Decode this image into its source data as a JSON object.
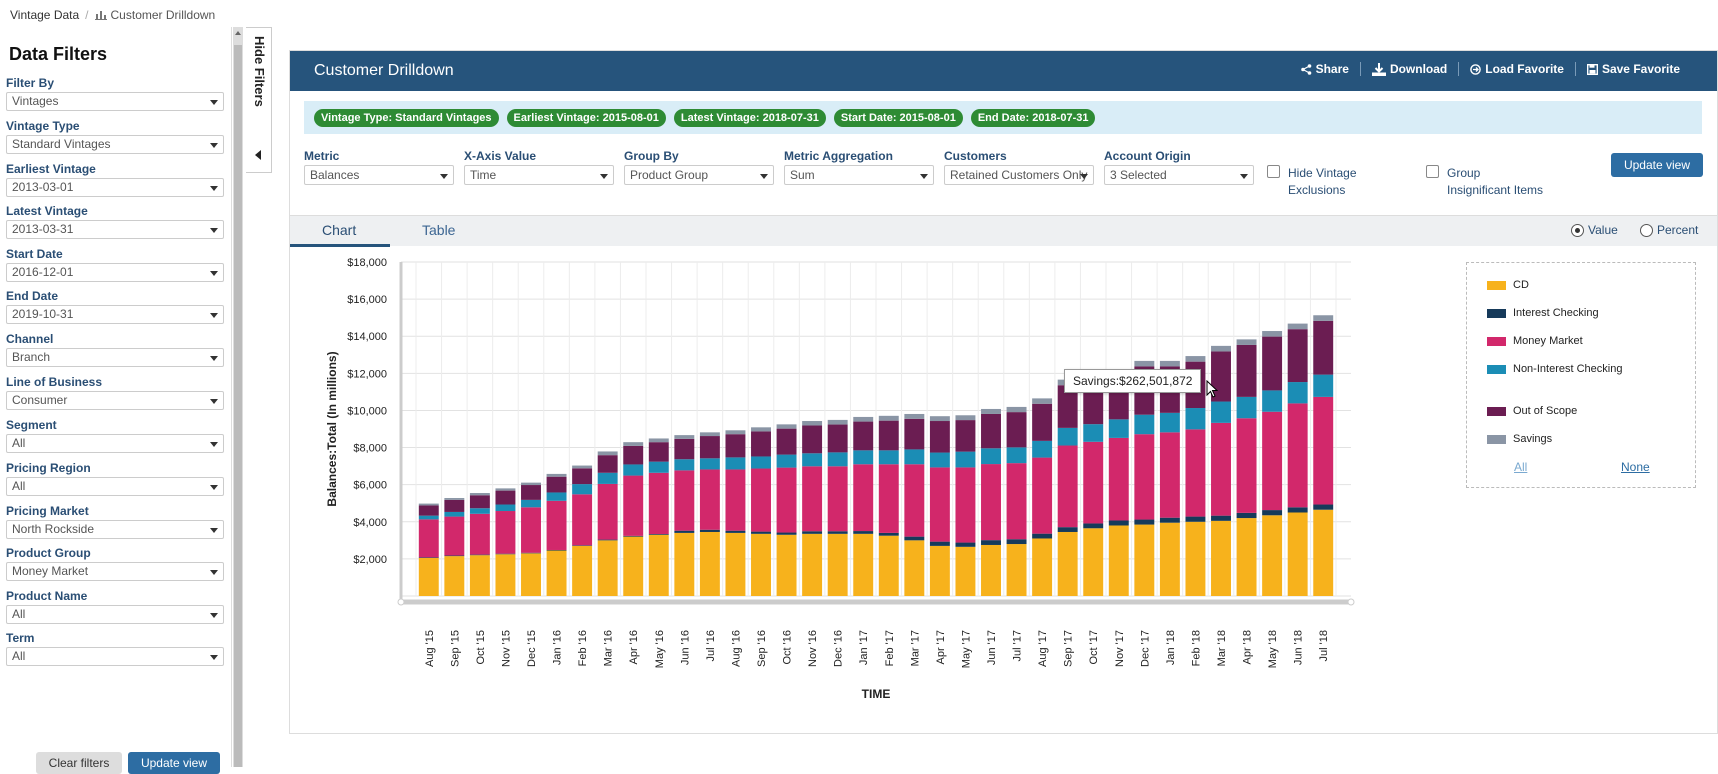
{
  "breadcrumb": {
    "root": "Vintage Data",
    "current": "Customer Drilldown"
  },
  "sidebar": {
    "title": "Data Filters",
    "filters": [
      {
        "label": "Filter By",
        "value": "Vintages"
      },
      {
        "label": "Vintage Type",
        "value": "Standard Vintages"
      },
      {
        "label": "Earliest Vintage",
        "value": "2013-03-01"
      },
      {
        "label": "Latest Vintage",
        "value": "2013-03-31"
      },
      {
        "label": "Start Date",
        "value": "2016-12-01"
      },
      {
        "label": "End Date",
        "value": "2019-10-31"
      },
      {
        "label": "Channel",
        "value": "Branch"
      },
      {
        "label": "Line of Business",
        "value": "Consumer"
      },
      {
        "label": "Segment",
        "value": "All"
      },
      {
        "label": "Pricing Region",
        "value": "All"
      },
      {
        "label": "Pricing Market",
        "value": "North Rockside"
      },
      {
        "label": "Product Group",
        "value": "Money Market"
      },
      {
        "label": "Product Name",
        "value": "All"
      },
      {
        "label": "Term",
        "value": "All"
      }
    ],
    "clear_label": "Clear filters",
    "update_label": "Update view",
    "hide_label": "Hide Filters"
  },
  "panel": {
    "title": "Customer Drilldown",
    "actions": {
      "share": "Share",
      "download": "Download",
      "load": "Load Favorite",
      "save": "Save Favorite"
    },
    "chips": [
      "Vintage Type: Standard Vintages",
      "Earliest Vintage: 2015-08-01",
      "Latest Vintage: 2018-07-31",
      "Start Date: 2015-08-01",
      "End Date: 2018-07-31"
    ],
    "controls": [
      {
        "label": "Metric",
        "value": "Balances"
      },
      {
        "label": "X-Axis Value",
        "value": "Time"
      },
      {
        "label": "Group By",
        "value": "Product Group"
      },
      {
        "label": "Metric Aggregation",
        "value": "Sum"
      },
      {
        "label": "Customers",
        "value": "Retained Customers Only"
      },
      {
        "label": "Account Origin",
        "value": "3 Selected"
      }
    ],
    "checks": {
      "hide_vintage": [
        "Hide Vintage",
        "Exclusions"
      ],
      "group_insig": [
        "Group",
        "Insignificant Items"
      ]
    },
    "update_label": "Update view",
    "tabs": {
      "chart": "Chart",
      "table": "Table"
    },
    "radios": {
      "value": "Value",
      "percent": "Percent"
    }
  },
  "legend": {
    "all": "All",
    "none": "None"
  },
  "tooltip": "Savings:$262,501,872",
  "chart_data": {
    "type": "bar",
    "stacked": true,
    "ylabel": "Balances:Total (In millions)",
    "xlabel": "TIME",
    "ylim": [
      0,
      18000
    ],
    "yticks": [
      "$2,000",
      "$4,000",
      "$6,000",
      "$8,000",
      "$10,000",
      "$12,000",
      "$14,000",
      "$16,000",
      "$18,000"
    ],
    "grid": true,
    "legend_position": "right",
    "categories": [
      "Aug '15",
      "Sep '15",
      "Oct '15",
      "Nov '15",
      "Dec '15",
      "Jan '16",
      "Feb '16",
      "Mar '16",
      "Apr '16",
      "May '16",
      "Jun '16",
      "Jul '16",
      "Aug '16",
      "Sep '16",
      "Oct '16",
      "Nov '16",
      "Dec '16",
      "Jan '17",
      "Feb '17",
      "Mar '17",
      "Apr '17",
      "May '17",
      "Jun '17",
      "Jul '17",
      "Aug '17",
      "Sep '17",
      "Oct '17",
      "Nov '17",
      "Dec '17",
      "Jan '18",
      "Feb '18",
      "Mar '18",
      "Apr '18",
      "May '18",
      "Jun '18",
      "Jul '18"
    ],
    "series": [
      {
        "name": "CD",
        "color": "#f7b21c",
        "values": [
          2050,
          2150,
          2200,
          2250,
          2300,
          2450,
          2700,
          3000,
          3200,
          3300,
          3400,
          3450,
          3400,
          3350,
          3300,
          3350,
          3350,
          3350,
          3250,
          3000,
          2700,
          2650,
          2750,
          2800,
          3100,
          3450,
          3650,
          3800,
          3850,
          3950,
          4000,
          4050,
          4200,
          4350,
          4500,
          4650
        ]
      },
      {
        "name": "Interest Checking",
        "color": "#163a5a",
        "values": [
          30,
          30,
          30,
          30,
          30,
          30,
          30,
          40,
          40,
          40,
          120,
          120,
          120,
          120,
          120,
          140,
          140,
          150,
          150,
          200,
          230,
          230,
          260,
          260,
          260,
          260,
          260,
          270,
          270,
          270,
          280,
          280,
          280,
          280,
          280,
          280
        ]
      },
      {
        "name": "Money Market",
        "color": "#d2286b",
        "values": [
          2050,
          2100,
          2200,
          2300,
          2450,
          2650,
          2750,
          3000,
          3250,
          3300,
          3250,
          3250,
          3300,
          3400,
          3500,
          3500,
          3500,
          3600,
          3700,
          3900,
          4000,
          4050,
          4100,
          4100,
          4100,
          4400,
          4400,
          4450,
          4600,
          4600,
          4700,
          5000,
          5100,
          5300,
          5600,
          5800
        ]
      },
      {
        "name": "Non-Interest Checking",
        "color": "#1b8db5",
        "values": [
          200,
          250,
          300,
          350,
          400,
          450,
          550,
          600,
          600,
          600,
          600,
          600,
          650,
          650,
          700,
          700,
          750,
          750,
          750,
          800,
          800,
          850,
          850,
          850,
          900,
          950,
          950,
          1000,
          1050,
          1050,
          1150,
          1150,
          1150,
          1150,
          1150,
          1200
        ]
      },
      {
        "name": "Out of Scope",
        "color": "#6b1d52",
        "values": [
          550,
          650,
          700,
          750,
          800,
          850,
          850,
          950,
          1000,
          1050,
          1100,
          1200,
          1250,
          1350,
          1400,
          1500,
          1500,
          1550,
          1600,
          1650,
          1700,
          1700,
          1850,
          1900,
          2000,
          2300,
          2200,
          2300,
          2600,
          2500,
          2500,
          2700,
          2800,
          2900,
          2850,
          2900
        ]
      },
      {
        "name": "Savings",
        "color": "#8a95a5",
        "values": [
          100,
          100,
          120,
          120,
          130,
          150,
          150,
          200,
          200,
          200,
          200,
          200,
          210,
          220,
          230,
          240,
          250,
          250,
          260,
          260,
          260,
          260,
          270,
          280,
          290,
          300,
          300,
          300,
          300,
          300,
          300,
          300,
          300,
          300,
          300,
          300
        ]
      }
    ]
  }
}
